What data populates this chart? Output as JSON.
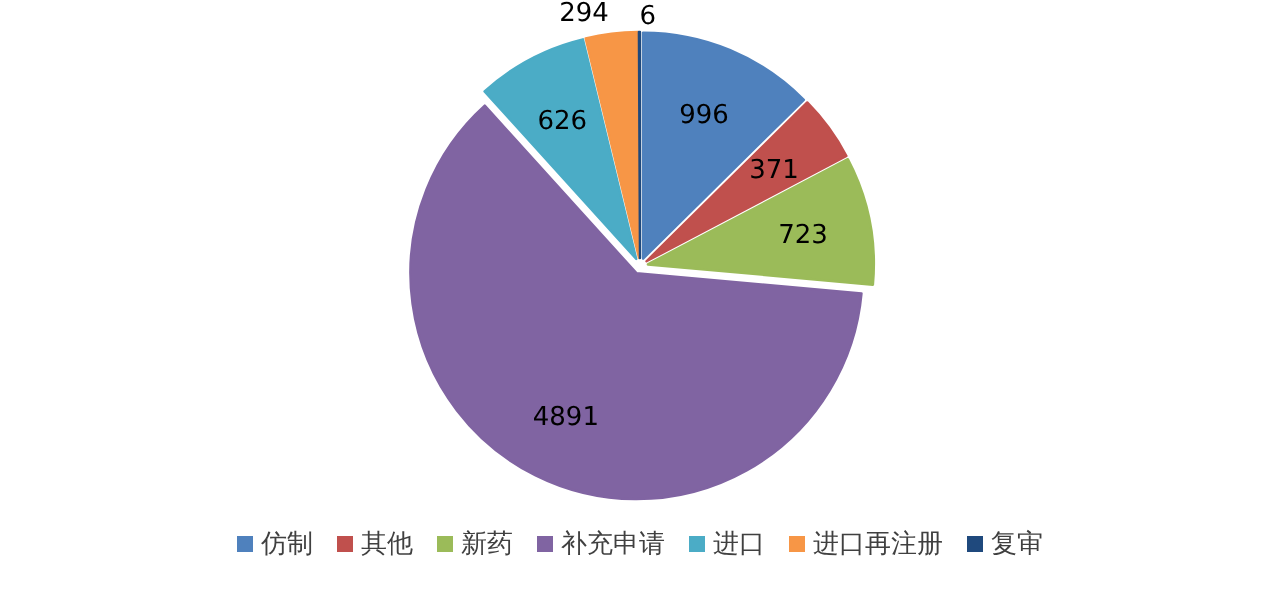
{
  "chart_data": {
    "type": "pie",
    "categories": [
      "仿制",
      "其他",
      "新药",
      "补充申请",
      "进口",
      "进口再注册",
      "复审"
    ],
    "values": [
      996,
      371,
      723,
      4891,
      626,
      294,
      6
    ],
    "colors": [
      "#4f81bd",
      "#c0504d",
      "#9bbb59",
      "#8064a2",
      "#4bacc6",
      "#f79646",
      "#1f497d"
    ],
    "data_labels": true,
    "legend": "bottom"
  }
}
